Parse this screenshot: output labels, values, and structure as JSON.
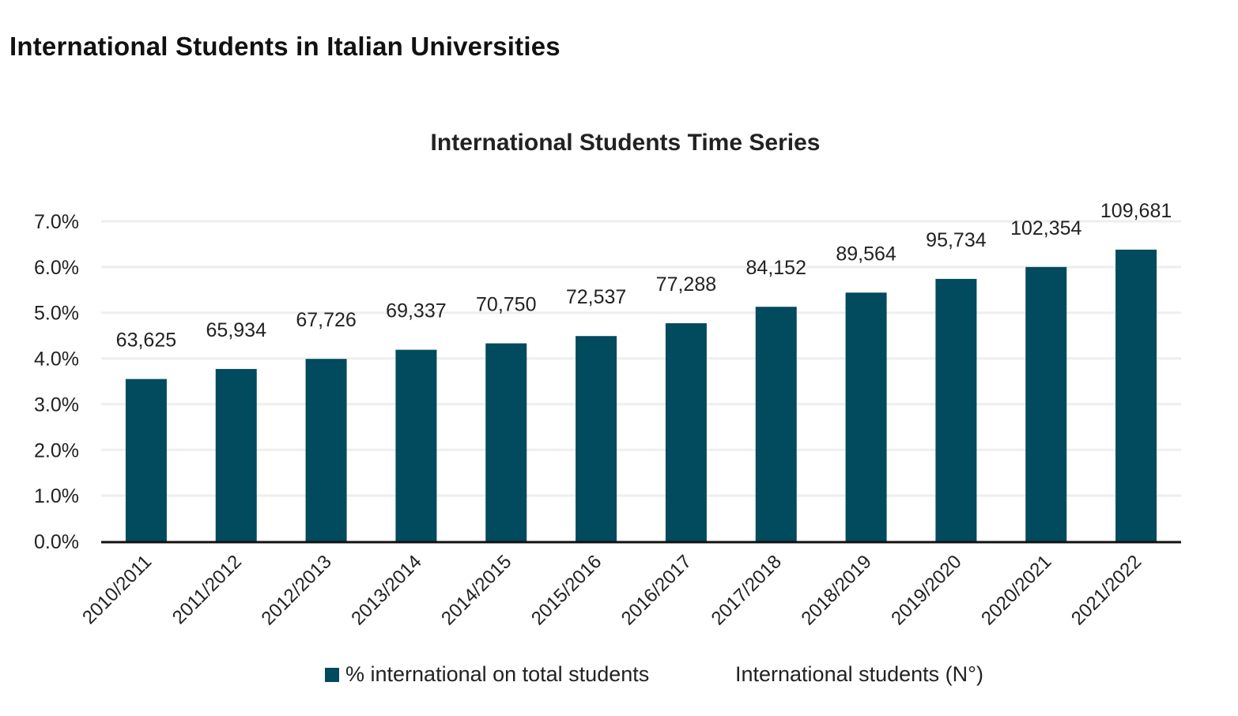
{
  "page_title": "International Students in Italian Universities",
  "colors": {
    "bar": "#024a5e",
    "grid": "#eeeeee",
    "axis": "#111111"
  },
  "chart_data": {
    "type": "bar",
    "title": "International Students Time Series",
    "categories": [
      "2010/2011",
      "2011/2012",
      "2012/2013",
      "2013/2014",
      "2014/2015",
      "2015/2016",
      "2016/2017",
      "2017/2018",
      "2018/2019",
      "2019/2020",
      "2020/2021",
      "2021/2022"
    ],
    "series": [
      {
        "name": "% international on total students",
        "values": [
          3.55,
          3.77,
          3.99,
          4.19,
          4.33,
          4.49,
          4.77,
          5.13,
          5.44,
          5.74,
          6.0,
          6.38
        ]
      },
      {
        "name": "International students (N°)",
        "values": [
          63625,
          65934,
          67726,
          69337,
          70750,
          72537,
          77288,
          84152,
          89564,
          95734,
          102354,
          109681
        ]
      }
    ],
    "data_labels": [
      "63,625",
      "65,934",
      "67,726",
      "69,337",
      "70,750",
      "72,537",
      "77,288",
      "84,152",
      "89,564",
      "95,734",
      "102,354",
      "109,681"
    ],
    "y_ticks": [
      "0.0%",
      "1.0%",
      "2.0%",
      "3.0%",
      "4.0%",
      "5.0%",
      "6.0%",
      "7.0%"
    ],
    "ylim": [
      0,
      7
    ],
    "grid": true,
    "legend_position": "bottom"
  }
}
